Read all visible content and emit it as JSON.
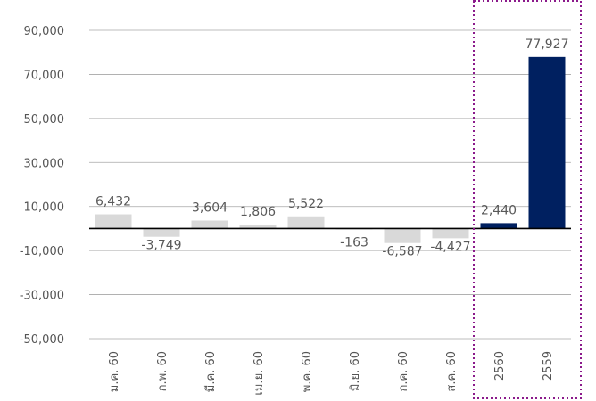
{
  "chart_data": {
    "type": "bar",
    "categories": [
      "ม.ค. 60",
      "ก.พ. 60",
      "มี.ค. 60",
      "เม.ย. 60",
      "พ.ค. 60",
      "มิ.ย. 60",
      "ก.ค. 60",
      "ส.ค. 60",
      "2560",
      "2559"
    ],
    "values": [
      6432,
      -3749,
      3604,
      1806,
      5522,
      -163,
      -6587,
      -4427,
      2440,
      77927
    ],
    "data_labels": [
      "6,432",
      "-3,749",
      "3,604",
      "1,806",
      "5,522",
      "-163",
      "-6,587",
      "-4,427",
      "2,440",
      "77,927"
    ],
    "title": "",
    "xlabel": "",
    "ylabel": "",
    "ylim": [
      -50000,
      90000
    ],
    "yticks": [
      90000,
      70000,
      50000,
      30000,
      10000,
      -10000,
      -30000,
      -50000
    ],
    "ytick_labels": [
      "90,000",
      "70,000",
      "50,000",
      "30,000",
      "10,000",
      "-10,000",
      "-30,000",
      "-50,000"
    ],
    "grid": true,
    "legend": "none",
    "highlight_box": "dotted box around categories 2560 and 2559",
    "colors": {
      "monthly_bar": "#d9d9d9",
      "annual_bar": "#002060",
      "highlight_border": "#8b1a8b",
      "gridline": "#a6a6a6",
      "zero_line": "#000000"
    }
  }
}
